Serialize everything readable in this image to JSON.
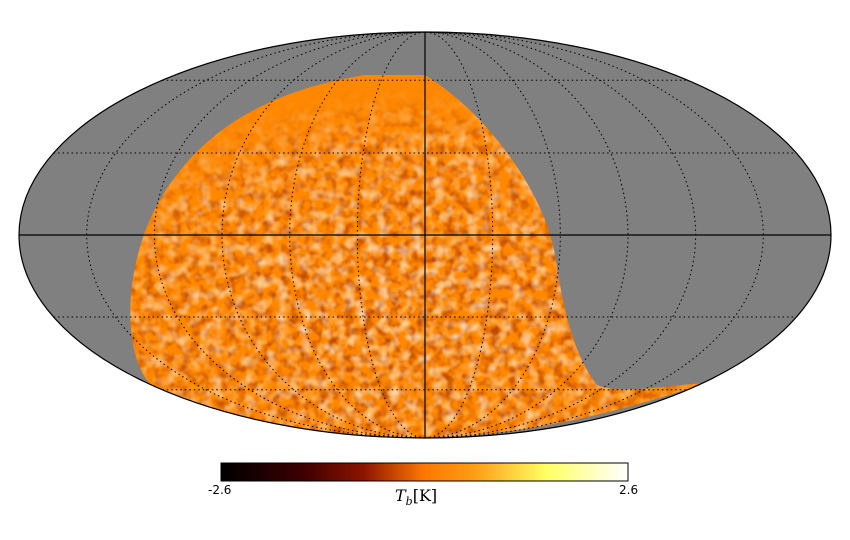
{
  "projection": "mollweide",
  "colors": {
    "masked": "#808080",
    "map_base": "#ff8800",
    "outline": "#000000",
    "colormap": [
      "#000000",
      "#3c0000",
      "#8c1400",
      "#d25000",
      "#ff8c00",
      "#ffc83c",
      "#ffff64",
      "#ffffff"
    ]
  },
  "colorbar": {
    "min_label": "-2.6",
    "max_label": "2.6",
    "title_symbol": "T",
    "title_subscript": "b",
    "title_unit": "[K]",
    "range": [
      -2.6,
      2.6
    ]
  },
  "graticule": {
    "meridian_spacing_deg": 30,
    "parallel_spacing_deg": 30,
    "central_lines": "solid",
    "other_lines": "dotted"
  }
}
